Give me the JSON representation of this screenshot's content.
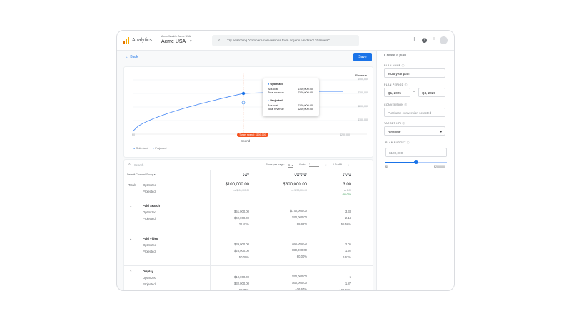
{
  "header": {
    "app_name": "Analytics",
    "breadcrumb": "Acme World > Acme USA",
    "property": "Acme USA",
    "search_placeholder": "Try searching \"compare conversions from organic vs direct channels\""
  },
  "toolbar": {
    "back_label": "Back",
    "save_label": "Save"
  },
  "chart": {
    "y_axis_title": "Revenue",
    "y_ticks": [
      "$400,000",
      "$300,000",
      "$200,000",
      "$100,000"
    ],
    "x_ticks": [
      "$0",
      "$200,000"
    ],
    "x_label": "Spend",
    "target_label": "Target spend: $100,000",
    "legend": [
      "Optimized",
      "Projected"
    ],
    "tooltip": {
      "opt_title": "Optimized",
      "proj_title": "Projected",
      "ads_cost_label": "Ads cost",
      "total_revenue_label": "Total revenue",
      "opt_ads_cost": "$100,000.00",
      "opt_revenue": "$300,000.00",
      "proj_ads_cost": "$100,000.00",
      "proj_revenue": "$200,000.00"
    },
    "colors": {
      "line": "#4285f4",
      "target": "#f4511e"
    }
  },
  "table": {
    "search_placeholder": "Search",
    "rows_per_page_label": "Rows per page:",
    "rows_per_page": "25",
    "goto_label": "Go to:",
    "goto_value": "1",
    "range": "1-9 of 9",
    "dimension": "Default Channel Group",
    "cols": [
      "Cost",
      "Revenue",
      "ROAS"
    ],
    "totals": {
      "label": "Totals",
      "opt": "Optimized",
      "proj": "Projected",
      "cost": "$100,000.00",
      "cost_vs": "vs $100,000.00",
      "revenue": "$300,000.00",
      "revenue_vs": "vs $200,000.00",
      "roas": "3.00",
      "roas_vs": "vs 2.00",
      "roas_change": "+50.00%"
    },
    "rows": [
      {
        "n": "1",
        "name": "Paid Search",
        "opt": "Optimized",
        "proj": "Projected",
        "cost": [
          "$51,000.00",
          "$42,000.00",
          "21.43%"
        ],
        "revenue": [
          "$170,000.00",
          "$90,000.00",
          "88.89%"
        ],
        "roas": [
          "3.33",
          "2.14",
          "55.56%"
        ]
      },
      {
        "n": "2",
        "name": "Paid Video",
        "opt": "Optimized",
        "proj": "Projected",
        "cost": [
          "$39,000.00",
          "$26,000.00",
          "50.00%"
        ],
        "revenue": [
          "$80,000.00",
          "$50,000.00",
          "60.00%"
        ],
        "roas": [
          "2.05",
          "1.92",
          "6.67%"
        ]
      },
      {
        "n": "3",
        "name": "Display",
        "opt": "Optimized",
        "proj": "Projected",
        "cost": [
          "$10,000.00",
          "$32,000.00",
          "-68.75%"
        ],
        "revenue": [
          "$50,000.00",
          "$60,000.00",
          "-16.67%"
        ],
        "roas": [
          "5",
          "1.87",
          "166.67%"
        ]
      }
    ]
  },
  "panel": {
    "title": "Create a plan",
    "plan_name_label": "PLAN NAME",
    "plan_name": "2025 year plan",
    "plan_period_label": "PLAN PERIOD",
    "period_start": "Q1, 2025",
    "period_sep": "–",
    "period_end": "Q4, 2025",
    "conversion_label": "CONVERSION",
    "conversion_placeholder": "Purchase conversion selected",
    "kpi_label": "TARGET KPI",
    "kpi": "Revenue",
    "budget_label": "PLAN BUDGET",
    "budget": "$100,000",
    "slider_min": "$0",
    "slider_max": "$200,000",
    "slider_value_fraction": 0.5
  }
}
